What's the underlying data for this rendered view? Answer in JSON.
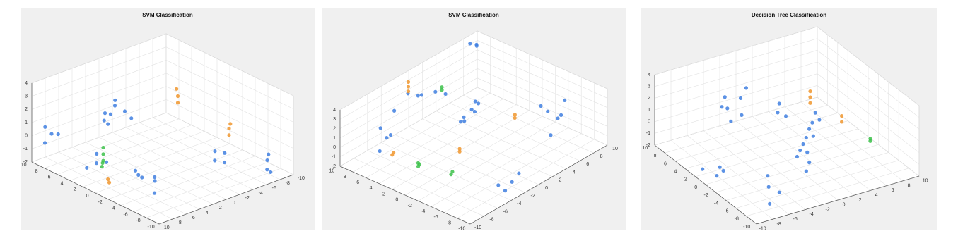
{
  "chart_data": [
    {
      "type": "scatter3d",
      "title": "SVM Classification",
      "xlim": [
        -10,
        10
      ],
      "ylim": [
        -10,
        10
      ],
      "zlim": [
        -2,
        4
      ],
      "xticks": [
        -10,
        -8,
        -6,
        -4,
        -2,
        0,
        2,
        4,
        6,
        8,
        10
      ],
      "yticks": [
        -10,
        -8,
        -6,
        -4,
        -2,
        0,
        2,
        4,
        6,
        8,
        10
      ],
      "zticks": [
        -2,
        -1,
        0,
        1,
        2,
        3,
        4
      ],
      "grid": true,
      "series": [
        {
          "color": "#3f7fe0",
          "x": [
            7,
            7.5,
            8,
            6.5,
            7,
            8,
            9,
            9.5,
            9,
            8.5,
            3,
            3.5,
            4,
            2.5,
            -1,
            -1.5,
            -2,
            -3,
            -3.5,
            -4,
            -4,
            -4.5,
            -5,
            -5.5,
            -8,
            -8.5,
            -8,
            -8.2,
            5,
            5.5
          ],
          "y": [
            -1,
            0,
            1,
            -1.5,
            1.5,
            -0.5,
            8,
            8.5,
            9,
            7.5,
            7,
            6.5,
            7.5,
            6,
            5,
            4.5,
            5.5,
            4,
            4.5,
            5,
            -4,
            -3.5,
            -4.5,
            -4,
            -8,
            -7.5,
            -8.5,
            -8,
            3,
            3.5
          ],
          "z": [
            0.5,
            1,
            0.5,
            0,
            0,
            1.2,
            0,
            0.5,
            -0.5,
            0,
            -1,
            -0.5,
            -1.5,
            -1,
            -1,
            -1.5,
            -1,
            -1.5,
            -1,
            -2,
            -0.5,
            -1,
            -0.5,
            -1,
            -1,
            -1.5,
            -2,
            -0.5,
            1.5,
            1
          ]
        },
        {
          "color": "#f0962e",
          "x": [
            5,
            5,
            5.2,
            -2,
            -2,
            -2.2,
            1,
            1.2
          ],
          "y": [
            -7,
            -7,
            -7,
            -8,
            -8,
            -8,
            7,
            7
          ],
          "z": [
            1,
            0.5,
            1.5,
            0,
            -0.5,
            0.4,
            -2,
            -1.8
          ]
        },
        {
          "color": "#3cc14a",
          "x": [
            3,
            3,
            3,
            3.2,
            3.1
          ],
          "y": [
            6,
            6,
            6,
            6,
            6
          ],
          "z": [
            -0.5,
            0,
            -1,
            -1.5,
            -1.2
          ]
        }
      ]
    },
    {
      "type": "scatter3d",
      "title": "SVM Classification",
      "xlim": [
        -10,
        10
      ],
      "ylim": [
        -10,
        10
      ],
      "zlim": [
        -2,
        4
      ],
      "xticks": [
        -10,
        -8,
        -6,
        -4,
        -2,
        0,
        2,
        4,
        6,
        8,
        10
      ],
      "yticks": [
        -10,
        -8,
        -6,
        -4,
        -2,
        0,
        2,
        4,
        6,
        8,
        10
      ],
      "zticks": [
        -2,
        -1,
        0,
        1,
        2,
        3,
        4
      ],
      "grid": true,
      "series": [
        {
          "color": "#3f7fe0",
          "x": [
            8,
            8,
            8,
            8,
            8,
            7.5,
            7.5,
            7.5,
            3,
            3.5,
            4,
            4.5,
            -4,
            -4,
            -4.5,
            -4.5,
            -5,
            -5,
            -8,
            -8,
            -8,
            -8,
            8,
            8.5,
            9,
            6,
            6,
            2,
            2.5,
            1
          ],
          "y": [
            -6,
            -4,
            -2,
            0,
            2,
            -5,
            -1,
            3,
            3,
            4,
            3.5,
            4.5,
            6,
            7,
            8,
            9,
            6.5,
            8,
            -4,
            -3,
            -2,
            -1,
            8,
            8.5,
            8,
            -8,
            -7,
            0,
            1,
            -0.5
          ],
          "z": [
            1,
            2,
            3,
            2,
            1.5,
            0,
            2.5,
            1,
            0.5,
            0.8,
            0.2,
            0.5,
            2,
            1,
            0,
            1.5,
            -1,
            0.5,
            -1,
            -2,
            -1.5,
            -1,
            4,
            3.5,
            3.8,
            0,
            1,
            1,
            0.5,
            2
          ]
        },
        {
          "color": "#f0962e",
          "x": [
            9,
            9,
            9,
            6,
            6.2,
            0,
            0.2,
            -1,
            -1
          ],
          "y": [
            -1,
            -1,
            -1,
            -6,
            -6,
            6,
            6.2,
            -3,
            -3
          ],
          "z": [
            3,
            2.5,
            3.5,
            -1,
            -1.3,
            -0.5,
            -0.3,
            0,
            0.3
          ]
        },
        {
          "color": "#3cc14a",
          "x": [
            7,
            7,
            2,
            2.2,
            2,
            -2,
            -2
          ],
          "y": [
            2,
            2,
            -6,
            -6,
            -6.2,
            -5,
            -5.2
          ],
          "z": [
            2,
            2.3,
            -1,
            -1.3,
            -0.8,
            -1,
            -1.2
          ]
        }
      ]
    },
    {
      "type": "scatter3d",
      "title": "Decision Tree Classification",
      "xlim": [
        -10,
        10
      ],
      "ylim": [
        -10,
        10
      ],
      "zlim": [
        -2,
        4
      ],
      "xticks": [
        -10,
        -8,
        -6,
        -4,
        -2,
        0,
        2,
        4,
        6,
        8,
        10
      ],
      "yticks": [
        -10,
        -8,
        -6,
        -4,
        -2,
        0,
        2,
        4,
        6,
        8,
        10
      ],
      "zticks": [
        -2,
        -1,
        0,
        1,
        2,
        3,
        4
      ],
      "grid": true,
      "series": [
        {
          "color": "#3f7fe0",
          "x": [
            8,
            8.5,
            7.5,
            7,
            6.5,
            8,
            9,
            5,
            5,
            5.5,
            -2,
            -1,
            0,
            1,
            2,
            3,
            4,
            -3,
            -2,
            0,
            2,
            4,
            -6,
            -6.5,
            -7,
            -5,
            1,
            2,
            3,
            0.5
          ],
          "y": [
            -3,
            -2,
            -1,
            -2.5,
            -1.5,
            0,
            -2,
            2,
            3,
            2.5,
            0,
            1,
            2,
            3,
            4,
            5,
            6,
            0.5,
            1.5,
            2.5,
            4.5,
            6.5,
            -6,
            -5,
            -6.5,
            -5.5,
            -8,
            -7,
            -8.5,
            -7.5
          ],
          "z": [
            0.5,
            0,
            1,
            -0.5,
            0,
            1.5,
            0.8,
            0,
            -0.5,
            0.5,
            -1,
            -1,
            -1,
            -1,
            -0.8,
            -0.8,
            -0.5,
            -2,
            -1.8,
            -1.8,
            -1.5,
            -1.2,
            -1,
            -1.5,
            -2,
            -0.5,
            -2,
            -1.8,
            -2,
            -1.5
          ]
        },
        {
          "color": "#f0962e",
          "x": [
            5,
            5,
            5,
            2,
            2
          ],
          "y": [
            6,
            6,
            6,
            8,
            8
          ],
          "z": [
            0.5,
            1,
            0,
            -1,
            -0.5
          ]
        },
        {
          "color": "#3cc14a",
          "x": [
            -2,
            -2
          ],
          "y": [
            9,
            9
          ],
          "z": [
            -1.5,
            -1.3
          ]
        }
      ]
    }
  ]
}
